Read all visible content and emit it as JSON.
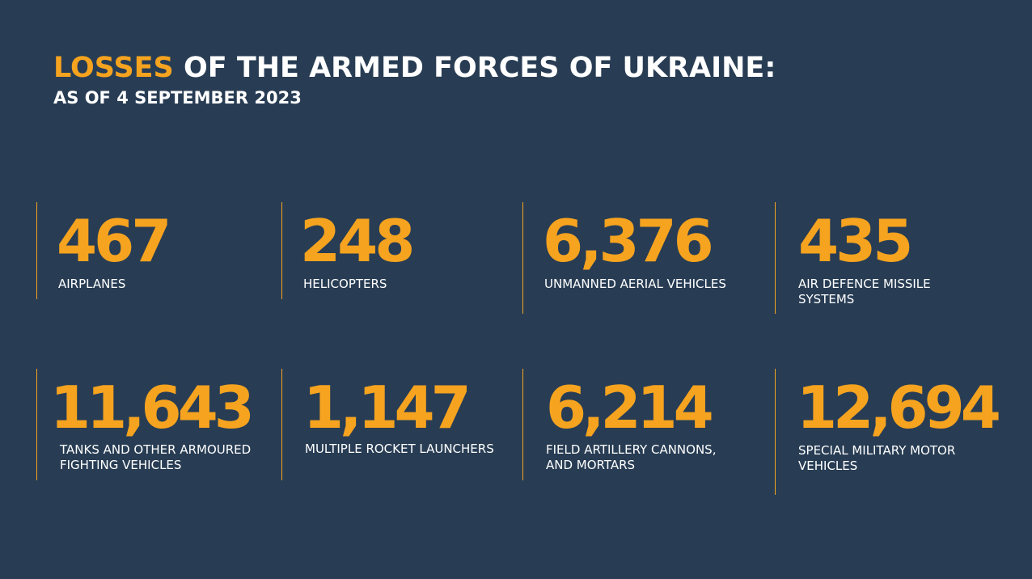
{
  "header": {
    "title_accent": "LOSSES",
    "title_rest": "OF THE ARMED FORCES OF UKRAINE:",
    "subtitle": "AS OF 4 SEPTEMBER 2023"
  },
  "colors": {
    "background": "#283d54",
    "accent": "#f6a31f",
    "text": "#ffffff"
  },
  "stats": [
    {
      "value": "467",
      "label": "AIRPLANES"
    },
    {
      "value": "248",
      "label": "HELICOPTERS"
    },
    {
      "value": "6,376",
      "label": "UNMANNED AERIAL VEHICLES"
    },
    {
      "value": "435",
      "label": "AIR DEFENCE MISSILE SYSTEMS"
    },
    {
      "value": "11,643",
      "label": "TANKS AND OTHER ARMOURED FIGHTING VEHICLES"
    },
    {
      "value": "1,147",
      "label": "MULTIPLE ROCKET LAUNCHERS"
    },
    {
      "value": "6,214",
      "label": "FIELD ARTILLERY CANNONS, AND MORTARS"
    },
    {
      "value": "12,694",
      "label": "SPECIAL MILITARY MOTOR VEHICLES"
    }
  ]
}
